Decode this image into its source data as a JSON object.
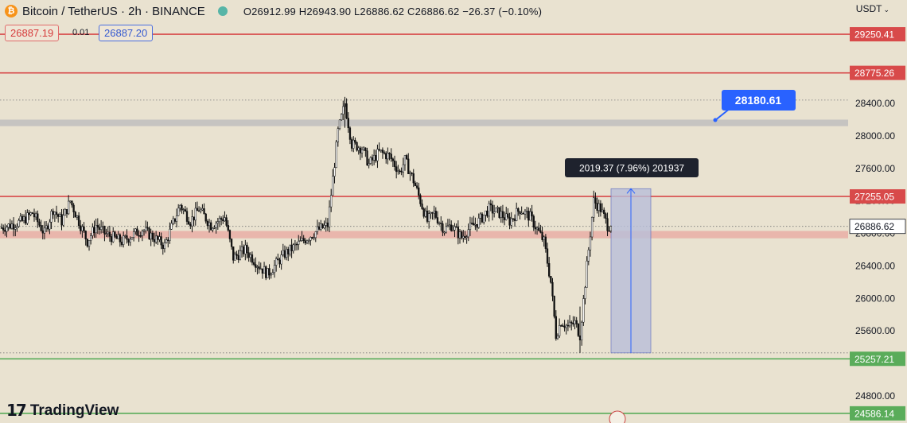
{
  "header": {
    "symbol": "Bitcoin / TetherUS · 2h · BINANCE",
    "ohlc": "O26912.99 H26943.90 L26886.62 C26886.62 −26.37 (−0.10%)",
    "currency": "USDT"
  },
  "quote": {
    "sell": "26887.19",
    "spread": "0.01",
    "buy": "26887.20"
  },
  "brand": {
    "name": "TradingView"
  },
  "icons": {
    "coin": "bitcoin-icon",
    "status": "market-status-icon",
    "logo": "tradingview-logo-icon",
    "flag": "flag-icon"
  },
  "colors": {
    "bg": "#e9e2d0",
    "resistance": "#d84a4a",
    "support": "#5aac5a",
    "callout": "#2962ff",
    "range_fill": "#b9bfd9",
    "candle": "#111111"
  },
  "chart_data": {
    "type": "candlestick",
    "title": "Bitcoin / TetherUS · 2h · BINANCE",
    "ylim": [
      24530,
      29300
    ],
    "yticks": [
      24800,
      25600,
      26000,
      26400,
      26800,
      27200,
      27600,
      28000,
      28400
    ],
    "price_levels": [
      {
        "label": "29250.41",
        "value": 29250.41,
        "kind": "resistance"
      },
      {
        "label": "28775.26",
        "value": 28775.26,
        "kind": "resistance"
      },
      {
        "label": "27255.05",
        "value": 27255.05,
        "kind": "resistance"
      },
      {
        "label": "25257.21",
        "value": 25257.21,
        "kind": "support"
      },
      {
        "label": "24586.14",
        "value": 24586.14,
        "kind": "support"
      }
    ],
    "zones": [
      {
        "from": 28120,
        "to": 28200,
        "kind": "neutral"
      },
      {
        "from": 26740,
        "to": 26830,
        "kind": "resistance"
      }
    ],
    "dotted_levels": [
      28440,
      26886.62,
      25330
    ],
    "last_price": {
      "label": "26886.62",
      "value": 26886.62
    },
    "callout": {
      "label": "28180.61",
      "value": 28180.61
    },
    "measure": {
      "label": "2019.37 (7.96%) 201937",
      "from": 25330,
      "to": 27350
    },
    "series_path": [
      [
        0,
        26870
      ],
      [
        5,
        26900
      ],
      [
        12,
        26950
      ],
      [
        18,
        27050
      ],
      [
        25,
        26800
      ],
      [
        30,
        27100
      ],
      [
        35,
        26950
      ],
      [
        40,
        27200
      ],
      [
        44,
        27000
      ],
      [
        50,
        26700
      ],
      [
        55,
        26900
      ],
      [
        60,
        26800
      ],
      [
        70,
        26700
      ],
      [
        82,
        26850
      ],
      [
        95,
        26650
      ],
      [
        104,
        27150
      ],
      [
        110,
        26950
      ],
      [
        115,
        27100
      ],
      [
        122,
        26900
      ],
      [
        130,
        27000
      ],
      [
        135,
        26500
      ],
      [
        142,
        26600
      ],
      [
        150,
        26400
      ],
      [
        155,
        26300
      ],
      [
        165,
        26550
      ],
      [
        175,
        26700
      ],
      [
        185,
        26850
      ],
      [
        190,
        26900
      ],
      [
        196,
        28050
      ],
      [
        200,
        28400
      ],
      [
        204,
        27900
      ],
      [
        210,
        27850
      ],
      [
        214,
        27650
      ],
      [
        220,
        27800
      ],
      [
        226,
        27750
      ],
      [
        232,
        27550
      ],
      [
        235,
        27700
      ],
      [
        240,
        27450
      ],
      [
        244,
        27200
      ],
      [
        248,
        26950
      ],
      [
        252,
        27050
      ],
      [
        258,
        26850
      ],
      [
        262,
        26900
      ],
      [
        268,
        26750
      ],
      [
        272,
        26850
      ],
      [
        278,
        26950
      ],
      [
        284,
        27100
      ],
      [
        290,
        27050
      ],
      [
        296,
        26950
      ],
      [
        302,
        27100
      ],
      [
        308,
        27000
      ],
      [
        312,
        26850
      ],
      [
        316,
        26700
      ],
      [
        320,
        26200
      ],
      [
        323,
        25550
      ],
      [
        326,
        25720
      ],
      [
        330,
        25650
      ],
      [
        334,
        25700
      ],
      [
        337,
        25550
      ],
      [
        341,
        26400
      ],
      [
        345,
        27200
      ],
      [
        349,
        27100
      ],
      [
        353,
        26900
      ],
      [
        356,
        26886.62
      ]
    ],
    "n_bars": 356
  }
}
